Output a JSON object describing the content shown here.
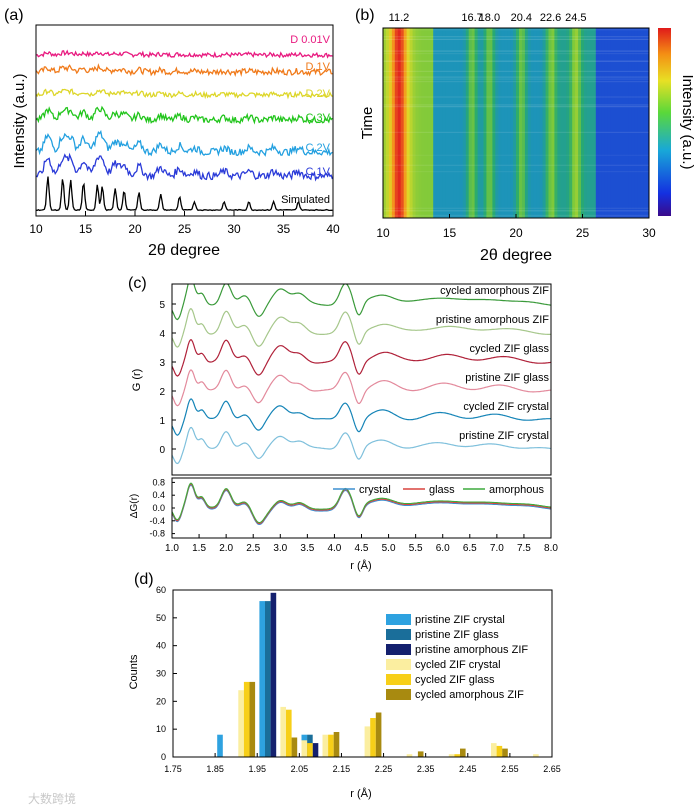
{
  "panels": {
    "a": {
      "label": "(a)",
      "xlabel": "2θ degree",
      "ylabel": "Intensity (a.u.)",
      "xlim": [
        10,
        40
      ],
      "xticks": [
        10,
        15,
        20,
        25,
        30,
        35,
        40
      ],
      "series": [
        {
          "name": "D 0.01V",
          "color": "#e8197f"
        },
        {
          "name": "D 1V",
          "color": "#f07a1a"
        },
        {
          "name": "D 2V",
          "color": "#ddd62a"
        },
        {
          "name": "C 3V",
          "color": "#22c51c"
        },
        {
          "name": "C 2V",
          "color": "#23a0e0"
        },
        {
          "name": "C 1V",
          "color": "#2a3ad8"
        },
        {
          "name": "Simulated",
          "color": "#000000"
        }
      ],
      "peaks": [
        11.2,
        12.7,
        13.5,
        14.8,
        16.2,
        16.7,
        18.0,
        18.9,
        20.4,
        22.6,
        24.5,
        26.0,
        29.0,
        31.5,
        34.0,
        36.5
      ]
    },
    "b": {
      "label": "(b)",
      "xlabel": "2θ degree",
      "ylabel": "Time",
      "colorbar_label": "Intensity (a.u.)",
      "xlim": [
        10,
        30
      ],
      "xticks": [
        10,
        15,
        20,
        25,
        30
      ],
      "peak_labels": [
        "11.2",
        "16.7",
        "18.0",
        "20.4",
        "22.6",
        "24.5"
      ],
      "peak_positions": [
        11.2,
        16.7,
        18.0,
        20.4,
        22.6,
        24.5
      ]
    },
    "c": {
      "label": "(c)",
      "ylabel": "G (r)",
      "ylabel_diff": "ΔG(r)",
      "xlabel": "r (Å)",
      "xlim": [
        1.0,
        8.0
      ],
      "xticks": [
        1.0,
        1.5,
        2.0,
        2.5,
        3.0,
        3.5,
        4.0,
        4.5,
        5.0,
        5.5,
        6.0,
        6.5,
        7.0,
        7.5,
        8.0
      ],
      "yticks": [
        0,
        1,
        2,
        3,
        4,
        5
      ],
      "diff_yticks": [
        -0.8,
        -0.4,
        0.0,
        0.4,
        0.8
      ],
      "series": [
        {
          "name": "cycled amorphous ZIF",
          "color": "#3a9a3a",
          "offset": 5
        },
        {
          "name": "pristine amorphous ZIF",
          "color": "#a6c78b",
          "offset": 4
        },
        {
          "name": "cycled ZIF glass",
          "color": "#b0223a",
          "offset": 3
        },
        {
          "name": "pristine ZIF glass",
          "color": "#e38a9c",
          "offset": 2
        },
        {
          "name": "cycled ZIF crystal",
          "color": "#1584b7",
          "offset": 1
        },
        {
          "name": "pristine ZIF crystal",
          "color": "#7fc0dc",
          "offset": 0
        }
      ],
      "diff_legend": [
        {
          "name": "crystal",
          "color": "#3d8fd1"
        },
        {
          "name": "glass",
          "color": "#d9443f"
        },
        {
          "name": "amorphous",
          "color": "#3daa3d"
        }
      ]
    }
  },
  "chart_data": {
    "type": "bar",
    "label": "(d)",
    "xlabel": "r (Å)",
    "ylabel": "Counts",
    "xlim": [
      1.75,
      2.65
    ],
    "ylim": [
      0,
      60
    ],
    "xticks": [
      "1.75",
      "1.85",
      "1.95",
      "2.05",
      "2.15",
      "2.25",
      "2.35",
      "2.45",
      "2.55",
      "2.65"
    ],
    "yticks": [
      0,
      10,
      20,
      30,
      40,
      50,
      60
    ],
    "bin_centers": [
      1.875,
      1.925,
      1.975,
      2.025,
      2.075,
      2.125,
      2.175,
      2.225,
      2.325,
      2.425,
      2.525,
      2.625
    ],
    "series": [
      {
        "name": "pristine ZIF crystal",
        "color": "#2ea2e0",
        "values": [
          8,
          0,
          56,
          0,
          8,
          0,
          0,
          0,
          0,
          0,
          0,
          0
        ]
      },
      {
        "name": "pristine ZIF glass",
        "color": "#1a6e9a",
        "values": [
          0,
          0,
          56,
          0,
          8,
          0,
          0,
          0,
          0,
          0,
          0,
          0
        ]
      },
      {
        "name": "pristine amorphous ZIF",
        "color": "#14206e",
        "values": [
          0,
          0,
          59,
          0,
          5,
          0,
          0,
          0,
          0,
          0,
          0,
          0
        ]
      },
      {
        "name": "cycled ZIF crystal",
        "color": "#fbeea0",
        "values": [
          0,
          24,
          0,
          18,
          6,
          8,
          0,
          11,
          1,
          1,
          5,
          1
        ]
      },
      {
        "name": "cycled ZIF glass",
        "color": "#f7cf18",
        "values": [
          0,
          27,
          0,
          17,
          5,
          8,
          0,
          14,
          0,
          1,
          4,
          0
        ]
      },
      {
        "name": "cycled amorphous ZIF",
        "color": "#a88a10",
        "values": [
          0,
          27,
          0,
          7,
          0,
          9,
          0,
          16,
          2,
          3,
          3,
          0
        ]
      }
    ]
  },
  "watermark": "大数跨境"
}
